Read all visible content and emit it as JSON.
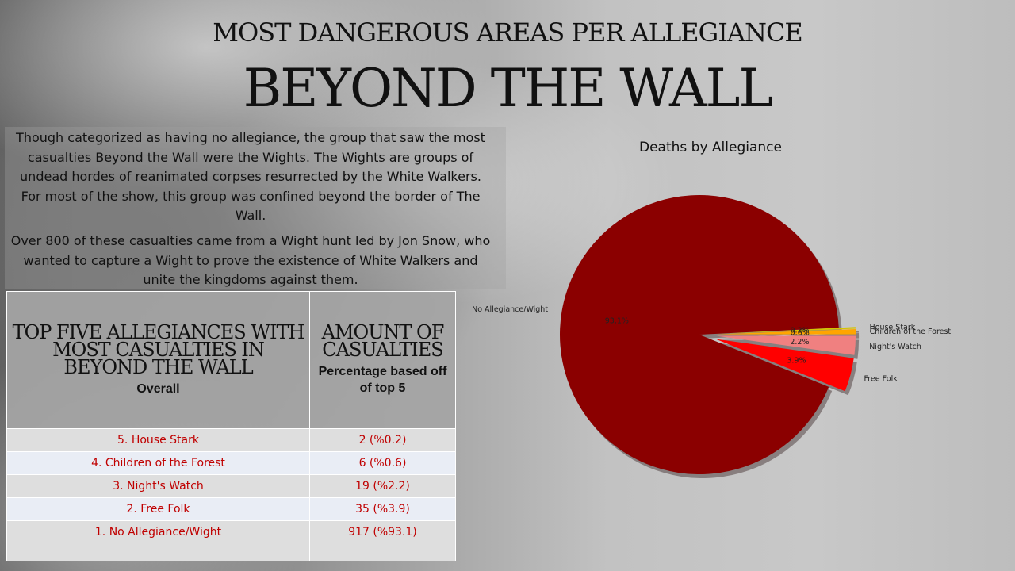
{
  "header": {
    "subtitle": "MOST DANGEROUS AREAS PER ALLEGIANCE",
    "title": "BEYOND THE WALL"
  },
  "body": {
    "paragraph1": "Though categorized as having no allegiance, the group that saw the most casualties Beyond the Wall were the Wights. The Wights are groups of undead hordes of reanimated corpses resurrected by the White Walkers. For most of the show, this group was confined beyond the border of The Wall.",
    "paragraph2": "Over 800 of these casualties came from a Wight hunt led by Jon Snow, who wanted to capture a Wight to prove the existence of White Walkers and unite the kingdoms against them."
  },
  "table": {
    "col1_header": "TOP FIVE ALLEGIANCES WITH MOST CASUALTIES IN BEYOND THE WALL",
    "col1_sub": "Overall",
    "col2_header": "AMOUNT OF CASUALTIES",
    "col2_sub": "Percentage based off of top 5",
    "rows": [
      {
        "name": "5. House Stark",
        "value": "2 (%0.2)"
      },
      {
        "name": "4. Children of the Forest",
        "value": "6 (%0.6)"
      },
      {
        "name": "3. Night's Watch",
        "value": "19 (%2.2)"
      },
      {
        "name": "2. Free Folk",
        "value": "35 (%3.9)"
      },
      {
        "name": "1. No Allegiance/Wight",
        "value": "917 (%93.1)"
      }
    ]
  },
  "chart_data": {
    "type": "pie",
    "title": "Deaths by Allegiance",
    "start_angle_deg": 0,
    "direction": "counterclockwise",
    "slices": [
      {
        "label": "Children of the Forest",
        "value": 0.6,
        "pct_label": "0.6%",
        "color": "#ffa500",
        "exploded": true
      },
      {
        "label": "House Stark",
        "value": 0.2,
        "pct_label": "0.2%",
        "color": "#d4c400",
        "exploded": true
      },
      {
        "label": "No Allegiance/Wight",
        "value": 93.1,
        "pct_label": "93.1%",
        "color": "#8b0000",
        "exploded": false
      },
      {
        "label": "Free Folk",
        "value": 3.9,
        "pct_label": "3.9%",
        "color": "#ff0000",
        "exploded": true
      },
      {
        "label": "Night's Watch",
        "value": 2.2,
        "pct_label": "2.2%",
        "color": "#f08080",
        "exploded": true
      }
    ],
    "shadow": true
  }
}
